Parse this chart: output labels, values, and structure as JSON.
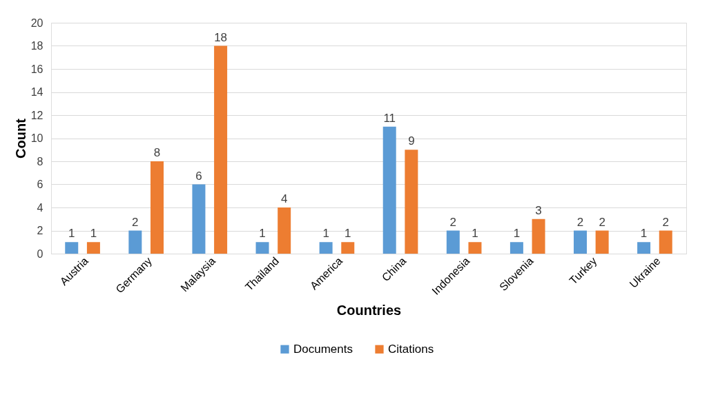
{
  "chart_data": {
    "type": "bar",
    "xlabel": "Countries",
    "ylabel": "Count",
    "categories": [
      "Austria",
      "Germany",
      "Malaysia",
      "Thailand",
      "America",
      "China",
      "Indonesia",
      "Slovenia",
      "Turkey",
      "Ukraine"
    ],
    "series": [
      {
        "name": "Documents",
        "color": "#5b9bd5",
        "values": [
          1,
          2,
          6,
          1,
          1,
          11,
          2,
          1,
          2,
          1
        ]
      },
      {
        "name": "Citations",
        "color": "#ed7d31",
        "values": [
          1,
          8,
          18,
          4,
          1,
          9,
          1,
          3,
          2,
          2
        ]
      }
    ],
    "ylim": [
      0,
      20
    ],
    "yticks": [
      0,
      2,
      4,
      6,
      8,
      10,
      12,
      14,
      16,
      18,
      20
    ],
    "grid": "y",
    "legend": "bottom",
    "data_labels": true
  }
}
